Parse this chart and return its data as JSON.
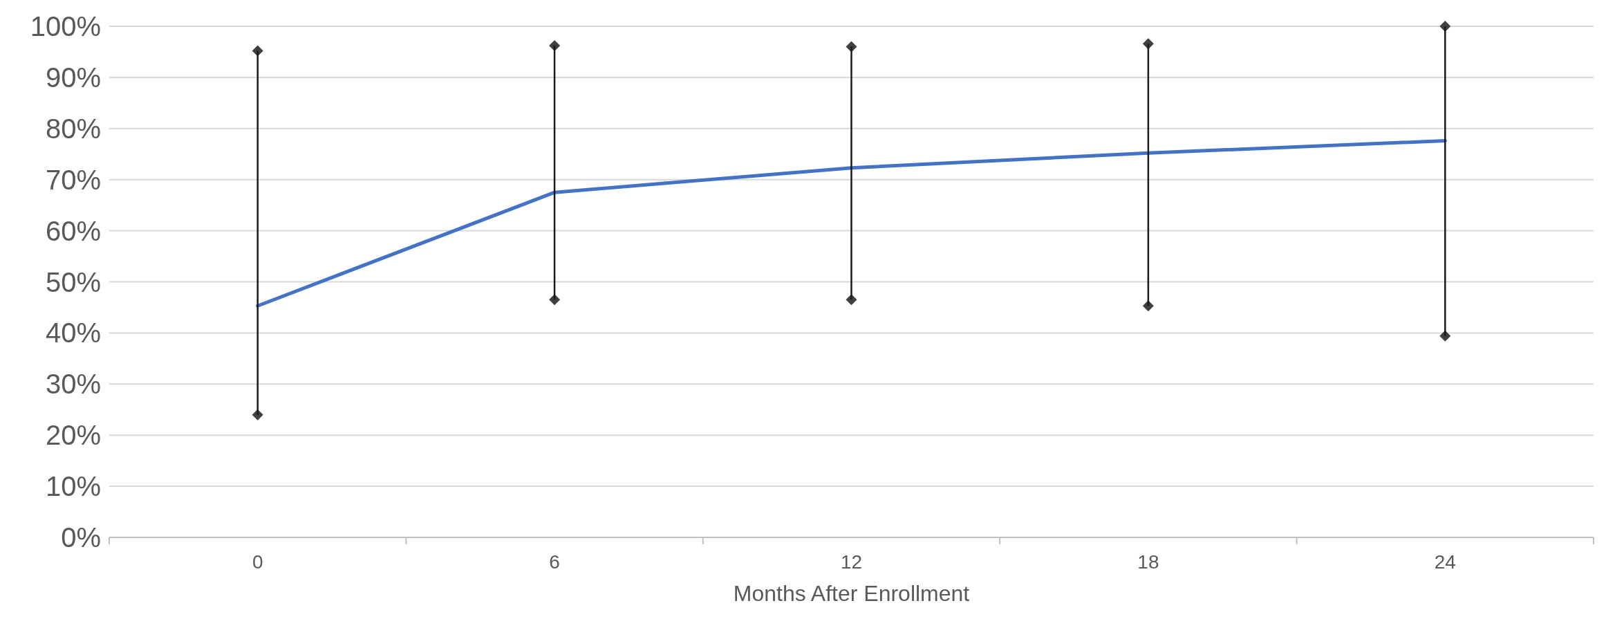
{
  "chart_data": {
    "type": "line",
    "xlabel": "Months After Enrollment",
    "categories": [
      "0",
      "6",
      "12",
      "18",
      "24"
    ],
    "series": [
      {
        "color": "#4472c4",
        "values": [
          45.3,
          67.5,
          72.3,
          75.2,
          77.6
        ],
        "errors": [
          [
            24.0,
            95.2
          ],
          [
            46.5,
            96.2
          ],
          [
            46.5,
            96.0
          ],
          [
            45.3,
            96.6
          ],
          [
            39.4,
            100
          ]
        ]
      }
    ],
    "ylim": [
      0,
      100
    ],
    "yticks": [
      {
        "value": 0,
        "label": "0%"
      },
      {
        "value": 10,
        "label": "10%"
      },
      {
        "value": 20,
        "label": "20%"
      },
      {
        "value": 30,
        "label": "30%"
      },
      {
        "value": 40,
        "label": "40%"
      },
      {
        "value": 50,
        "label": "50%"
      },
      {
        "value": 60,
        "label": "60%"
      },
      {
        "value": 70,
        "label": "70%"
      },
      {
        "value": 80,
        "label": "80%"
      },
      {
        "value": 90,
        "label": "90%"
      },
      {
        "value": 100,
        "label": "100%"
      }
    ],
    "grid": "y"
  }
}
